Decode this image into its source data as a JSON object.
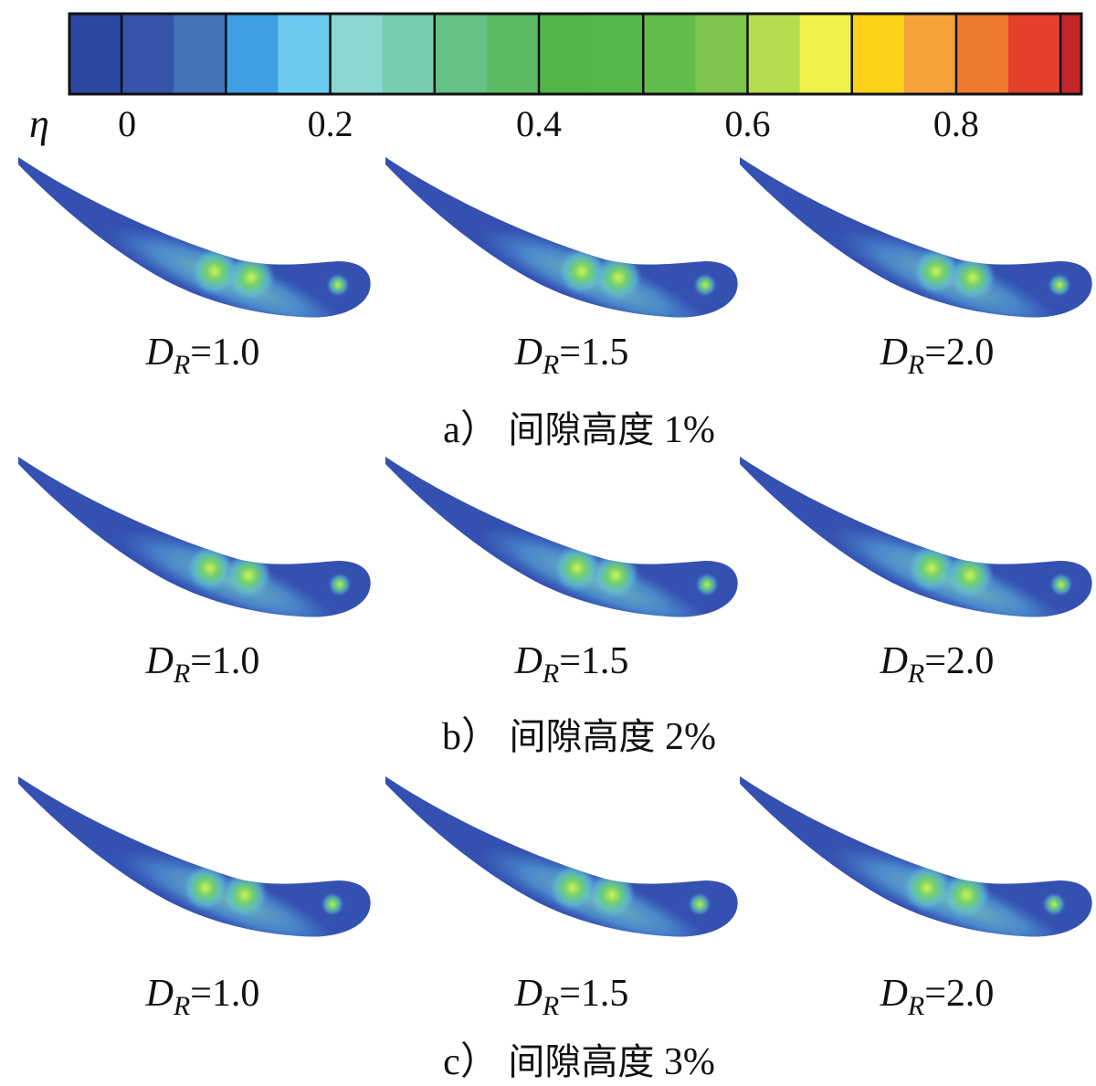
{
  "colorbar": {
    "symbol": "η",
    "ticks": [
      "0",
      "0.2",
      "0.4",
      "0.6",
      "0.8"
    ],
    "tick_values": [
      0,
      0.2,
      0.4,
      0.6,
      0.8
    ],
    "range": [
      -0.05,
      0.92
    ],
    "bands": [
      {
        "from": -0.05,
        "to": 0.0,
        "color": "#2b47a0"
      },
      {
        "from": 0.0,
        "to": 0.05,
        "color": "#3553a8"
      },
      {
        "from": 0.05,
        "to": 0.1,
        "color": "#4273b8"
      },
      {
        "from": 0.1,
        "to": 0.15,
        "color": "#3ea0e2"
      },
      {
        "from": 0.15,
        "to": 0.2,
        "color": "#6ccaf0"
      },
      {
        "from": 0.2,
        "to": 0.25,
        "color": "#8bd7d2"
      },
      {
        "from": 0.25,
        "to": 0.3,
        "color": "#77cbb0"
      },
      {
        "from": 0.3,
        "to": 0.35,
        "color": "#66c184"
      },
      {
        "from": 0.35,
        "to": 0.4,
        "color": "#5abb62"
      },
      {
        "from": 0.4,
        "to": 0.45,
        "color": "#52b548"
      },
      {
        "from": 0.45,
        "to": 0.5,
        "color": "#56b84a"
      },
      {
        "from": 0.5,
        "to": 0.55,
        "color": "#62bc4c"
      },
      {
        "from": 0.55,
        "to": 0.6,
        "color": "#7cc44e"
      },
      {
        "from": 0.6,
        "to": 0.65,
        "color": "#b5dc4e"
      },
      {
        "from": 0.65,
        "to": 0.7,
        "color": "#eef24a"
      },
      {
        "from": 0.7,
        "to": 0.75,
        "color": "#ffd21a"
      },
      {
        "from": 0.75,
        "to": 0.8,
        "color": "#f6a23a"
      },
      {
        "from": 0.8,
        "to": 0.85,
        "color": "#ee7a2e"
      },
      {
        "from": 0.85,
        "to": 0.9,
        "color": "#e5402c"
      },
      {
        "from": 0.9,
        "to": 0.92,
        "color": "#c3262c"
      }
    ]
  },
  "dr_symbol": "D",
  "dr_subscript": "R",
  "panels": [
    {
      "caption_letter": "a）",
      "caption_text": "间隙高度",
      "caption_value": "1%",
      "cases": [
        {
          "dr": "=1.0",
          "level": 0.45
        },
        {
          "dr": "=1.5",
          "level": 0.4
        },
        {
          "dr": "=2.0",
          "level": 0.35
        }
      ]
    },
    {
      "caption_letter": "b）",
      "caption_text": "间隙高度",
      "caption_value": "2%",
      "cases": [
        {
          "dr": "=1.0",
          "level": 0.35
        },
        {
          "dr": "=1.5",
          "level": 0.4
        },
        {
          "dr": "=2.0",
          "level": 0.45
        }
      ]
    },
    {
      "caption_letter": "c）",
      "caption_text": "间隙高度",
      "caption_value": "3%",
      "cases": [
        {
          "dr": "=1.0",
          "level": 0.35
        },
        {
          "dr": "=1.5",
          "level": 0.4
        },
        {
          "dr": "=2.0",
          "level": 0.45
        }
      ]
    }
  ]
}
